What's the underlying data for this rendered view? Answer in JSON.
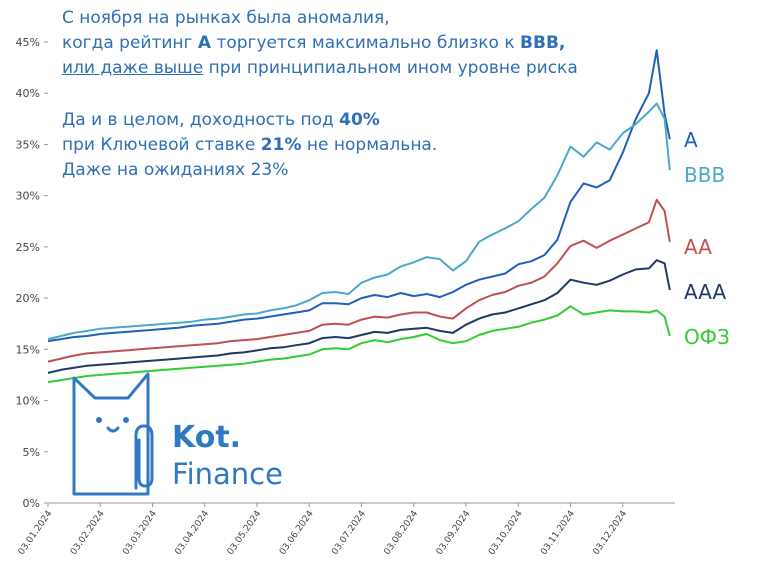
{
  "annotation": {
    "line1": "С ноября на рынках была аномалия,",
    "line2_pre": "когда рейтинг ",
    "line2_bold1": "A",
    "line2_mid": " торгуется максимально близко к ",
    "line2_bold2": "BBB,",
    "line3_underlined": "или даже выше",
    "line3_rest": " при принципиальном ином уровне риска",
    "line4_pre": "Да и в целом, доходность под ",
    "line4_bold": "40%",
    "line5_pre": "при Ключевой ставке ",
    "line5_bold": "21%",
    "line5_post": " не нормальна.",
    "line6": "Даже на ожиданиях 23%"
  },
  "brand": {
    "name": "Kot.",
    "sub": "Finance"
  },
  "colors": {
    "A": "#1f5fbf",
    "BBB": "#4aa9c7",
    "AA": "#c0504d",
    "AAA": "#1f3864",
    "OFZ": "#33cc33",
    "annotation": "#2f6fb5",
    "logo": "#2f79c2"
  },
  "chart_data": {
    "type": "line",
    "title": "",
    "xlabel": "",
    "ylabel": "",
    "ylim": [
      0,
      45
    ],
    "yticks": [
      "0%",
      "5%",
      "10%",
      "15%",
      "20%",
      "25%",
      "30%",
      "35%",
      "40%",
      "45%"
    ],
    "xticks": [
      "03.01.2024",
      "03.02.2024",
      "03.03.2024",
      "03.04.2024",
      "03.05.2024",
      "03.06.2024",
      "03.07.2024",
      "03.08.2024",
      "03.09.2024",
      "03.10.2024",
      "03.11.2024",
      "03.12.2024"
    ],
    "x": [
      0,
      0.25,
      0.5,
      0.75,
      1,
      1.25,
      1.5,
      1.75,
      2,
      2.25,
      2.5,
      2.75,
      3,
      3.25,
      3.5,
      3.75,
      4,
      4.25,
      4.5,
      4.75,
      5,
      5.25,
      5.5,
      5.75,
      6,
      6.25,
      6.5,
      6.75,
      7,
      7.25,
      7.5,
      7.75,
      8,
      8.25,
      8.5,
      8.75,
      9,
      9.25,
      9.5,
      9.75,
      10,
      10.25,
      10.5,
      10.75,
      11,
      11.25,
      11.5,
      11.65,
      11.8,
      11.9
    ],
    "series": [
      {
        "name": "A",
        "values": [
          15.8,
          16.0,
          16.2,
          16.3,
          16.5,
          16.6,
          16.7,
          16.8,
          16.9,
          17.0,
          17.1,
          17.3,
          17.4,
          17.5,
          17.7,
          17.9,
          18.0,
          18.2,
          18.4,
          18.6,
          18.8,
          19.5,
          19.5,
          19.4,
          20.0,
          20.3,
          20.1,
          20.5,
          20.2,
          20.4,
          20.1,
          20.6,
          21.3,
          21.8,
          22.1,
          22.4,
          23.3,
          23.6,
          24.2,
          25.7,
          29.4,
          31.2,
          30.8,
          31.5,
          34.2,
          37.5,
          40.0,
          44.2,
          38.0,
          35.5
        ]
      },
      {
        "name": "BBB",
        "values": [
          16.0,
          16.3,
          16.6,
          16.8,
          17.0,
          17.1,
          17.2,
          17.3,
          17.4,
          17.5,
          17.6,
          17.7,
          17.9,
          18.0,
          18.2,
          18.4,
          18.5,
          18.8,
          19.0,
          19.3,
          19.8,
          20.5,
          20.6,
          20.4,
          21.5,
          22.0,
          22.3,
          23.1,
          23.5,
          24.0,
          23.8,
          22.7,
          23.6,
          25.5,
          26.2,
          26.8,
          27.5,
          28.7,
          29.8,
          32.0,
          34.8,
          33.8,
          35.2,
          34.5,
          36.1,
          37.0,
          38.2,
          39.0,
          37.5,
          32.5
        ]
      },
      {
        "name": "AA",
        "values": [
          13.8,
          14.1,
          14.4,
          14.6,
          14.7,
          14.8,
          14.9,
          15.0,
          15.1,
          15.2,
          15.3,
          15.4,
          15.5,
          15.6,
          15.8,
          15.9,
          16.0,
          16.2,
          16.4,
          16.6,
          16.8,
          17.4,
          17.5,
          17.4,
          17.9,
          18.2,
          18.1,
          18.4,
          18.6,
          18.6,
          18.2,
          18.0,
          19.0,
          19.8,
          20.3,
          20.6,
          21.2,
          21.5,
          22.1,
          23.4,
          25.1,
          25.6,
          24.9,
          25.6,
          26.2,
          26.8,
          27.4,
          29.6,
          28.5,
          25.5
        ]
      },
      {
        "name": "AAA",
        "values": [
          12.7,
          13.0,
          13.2,
          13.4,
          13.5,
          13.6,
          13.7,
          13.8,
          13.9,
          14.0,
          14.1,
          14.2,
          14.3,
          14.4,
          14.6,
          14.7,
          14.9,
          15.1,
          15.2,
          15.4,
          15.6,
          16.1,
          16.2,
          16.1,
          16.4,
          16.7,
          16.6,
          16.9,
          17.0,
          17.1,
          16.8,
          16.6,
          17.4,
          18.0,
          18.4,
          18.6,
          19.0,
          19.4,
          19.8,
          20.5,
          21.8,
          21.5,
          21.3,
          21.7,
          22.3,
          22.8,
          22.9,
          23.7,
          23.4,
          20.8
        ]
      },
      {
        "name": "ОФЗ",
        "values": [
          11.8,
          12.0,
          12.2,
          12.4,
          12.5,
          12.6,
          12.7,
          12.8,
          12.9,
          13.0,
          13.1,
          13.2,
          13.3,
          13.4,
          13.5,
          13.6,
          13.8,
          14.0,
          14.1,
          14.3,
          14.5,
          15.0,
          15.1,
          15.0,
          15.6,
          15.9,
          15.7,
          16.0,
          16.2,
          16.5,
          15.9,
          15.6,
          15.8,
          16.4,
          16.8,
          17.0,
          17.2,
          17.6,
          17.9,
          18.3,
          19.2,
          18.4,
          18.6,
          18.8,
          18.7,
          18.7,
          18.6,
          18.8,
          18.2,
          16.3
        ]
      }
    ]
  }
}
